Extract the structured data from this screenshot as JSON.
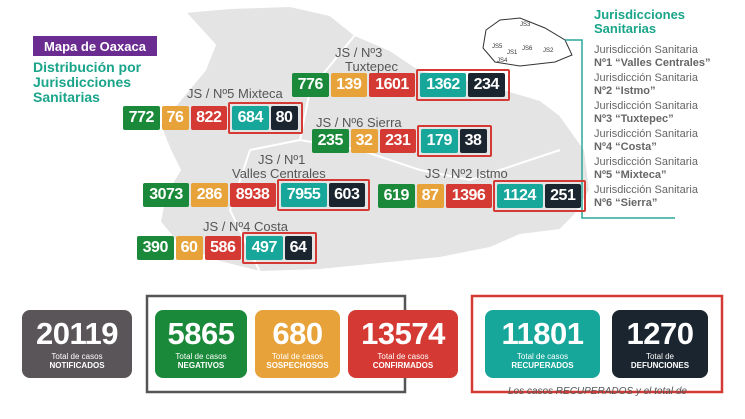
{
  "header": {
    "badge": "Mapa de Oaxaca",
    "title": "Distribución por Jurisdicciones Sanitarias"
  },
  "regions": [
    {
      "label": "JS / Nº3",
      "name": "Tuxtepec",
      "values": [
        "776",
        "139",
        "1601",
        "1362",
        "234"
      ]
    },
    {
      "label": "JS / Nº5 Mixteca",
      "values": [
        "772",
        "76",
        "822",
        "684",
        "80"
      ]
    },
    {
      "label": "JS / Nº6 Sierra",
      "values": [
        "235",
        "32",
        "231",
        "179",
        "38"
      ]
    },
    {
      "label": "JS / Nº1",
      "name": "Valles Centrales",
      "values": [
        "3073",
        "286",
        "8938",
        "7955",
        "603"
      ]
    },
    {
      "label": "JS / Nº2 Istmo",
      "values": [
        "619",
        "87",
        "1396",
        "1124",
        "251"
      ]
    },
    {
      "label": "JS / Nº4 Costa",
      "values": [
        "390",
        "60",
        "586",
        "497",
        "64"
      ]
    }
  ],
  "mini_map": [
    "JS3",
    "JS5",
    "JS1",
    "JS6",
    "JS2",
    "JS4"
  ],
  "legend": {
    "title": "Jurisdicciones Sanitarias",
    "items": [
      {
        "line1": "Jurisdicción Sanitaria",
        "line2": "Nº1 “Valles Centrales”"
      },
      {
        "line1": "Jurisdicción Sanitaria",
        "line2": "Nº2 “Istmo”"
      },
      {
        "line1": "Jurisdicción Sanitaria",
        "line2": "Nº3 “Tuxtepec”"
      },
      {
        "line1": "Jurisdicción Sanitaria",
        "line2": "Nº4 “Costa”"
      },
      {
        "line1": "Jurisdicción Sanitaria",
        "line2": "Nº5 “Mixteca”"
      },
      {
        "line1": "Jurisdicción Sanitaria",
        "line2": "Nº6 “Sierra”"
      }
    ]
  },
  "totals": [
    {
      "value": "20119",
      "sub": "Total de casos",
      "key": "NOTIFICADOS"
    },
    {
      "value": "5865",
      "sub": "Total de casos",
      "key": "NEGATIVOS"
    },
    {
      "value": "680",
      "sub": "Total de casos",
      "key": "SOSPECHOSOS"
    },
    {
      "value": "13574",
      "sub": "Total de casos",
      "key": "CONFIRMADOS"
    },
    {
      "value": "11801",
      "sub": "Total de casos",
      "key": "RECUPERADOS"
    },
    {
      "value": "1270",
      "sub": "Total de",
      "key": "DEFUNCIONES"
    }
  ],
  "note": "Los casos RECUPERADOS y el total de"
}
